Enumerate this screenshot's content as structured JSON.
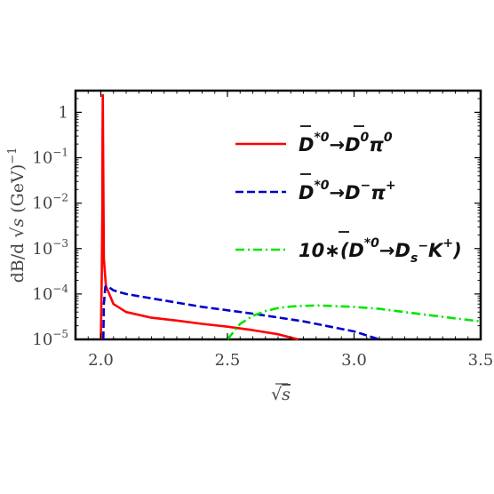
{
  "chart_data": {
    "type": "line",
    "title": "",
    "xlabel": "√s",
    "ylabel": "dB/d √s (GeV)⁻¹",
    "y_scale": "log",
    "xlim": [
      1.9,
      3.5
    ],
    "ylim": [
      1e-05,
      3
    ],
    "grid": false,
    "legend_position": "top-right",
    "x_ticks": [
      {
        "value": 2.0,
        "label": "2.0"
      },
      {
        "value": 2.5,
        "label": "2.5"
      },
      {
        "value": 3.0,
        "label": "3.0"
      },
      {
        "value": 3.5,
        "label": "3.5"
      }
    ],
    "y_ticks": [
      {
        "value": 1,
        "base": "1",
        "exp": ""
      },
      {
        "value": 0.1,
        "base": "10",
        "exp": "−1"
      },
      {
        "value": 0.01,
        "base": "10",
        "exp": "−2"
      },
      {
        "value": 0.001,
        "base": "10",
        "exp": "−3"
      },
      {
        "value": 0.0001,
        "base": "10",
        "exp": "−4"
      },
      {
        "value": 1e-05,
        "base": "10",
        "exp": "−5"
      }
    ],
    "series": [
      {
        "name": "D̄*0 → D̄0 π0",
        "color": "#ff0000",
        "dash": "solid",
        "x": [
          2.0,
          2.004,
          2.006,
          2.0068,
          2.0078,
          2.0088,
          2.012,
          2.02,
          2.05,
          2.1,
          2.2,
          2.3,
          2.4,
          2.5,
          2.6,
          2.7,
          2.78
        ],
        "y": [
          1e-05,
          0.0003,
          0.008,
          0.3,
          2.4,
          0.3,
          0.0006,
          0.00015,
          6e-05,
          4e-05,
          3e-05,
          2.6e-05,
          2.2e-05,
          1.9e-05,
          1.6e-05,
          1.3e-05,
          1e-05
        ]
      },
      {
        "name": "D̄*0 → D− π+",
        "color": "#0000cc",
        "dash": "dashed",
        "x": [
          2.01,
          2.012,
          2.018,
          2.025,
          2.05,
          2.1,
          2.2,
          2.4,
          2.6,
          2.8,
          3.0,
          3.1
        ],
        "y": [
          1e-05,
          6e-05,
          0.000145,
          0.00015,
          0.00012,
          0.0001,
          8e-05,
          5.2e-05,
          3.7e-05,
          2.5e-05,
          1.5e-05,
          1e-05
        ]
      },
      {
        "name": "10∗(D̄*0 → Ds− K+)",
        "color": "#00e600",
        "dash": "dashdot",
        "x": [
          2.5,
          2.55,
          2.6,
          2.65,
          2.7,
          2.75,
          2.8,
          2.85,
          2.9,
          3.0,
          3.1,
          3.2,
          3.3,
          3.4,
          3.5
        ],
        "y": [
          1e-05,
          2.2e-05,
          3.3e-05,
          4.2e-05,
          4.9e-05,
          5.3e-05,
          5.5e-05,
          5.6e-05,
          5.5e-05,
          5.2e-05,
          4.7e-05,
          4e-05,
          3.4e-05,
          2.9e-05,
          2.5e-05
        ]
      }
    ],
    "legend": [
      {
        "prefix": "",
        "parent_sup": "*0",
        "arrow": "→",
        "daughter": "D",
        "daughter_sup": "0",
        "daughter_bar": true,
        "daughter_sub": "",
        "rest": "π",
        "rest_sup": "0",
        "suffix": ""
      },
      {
        "prefix": "",
        "parent_sup": "*0",
        "arrow": "→",
        "daughter": "D",
        "daughter_sup": "−",
        "daughter_bar": false,
        "daughter_sub": "",
        "rest": "π",
        "rest_sup": "+",
        "suffix": ""
      },
      {
        "prefix": "10∗(",
        "parent_sup": "*0",
        "arrow": "→",
        "daughter": "D",
        "daughter_sup": "",
        "daughter_bar": false,
        "daughter_sub": "s",
        "rest": "K",
        "rest_sup": "+",
        "suffix": ")",
        "daughter_sub_sup": "−"
      }
    ]
  }
}
